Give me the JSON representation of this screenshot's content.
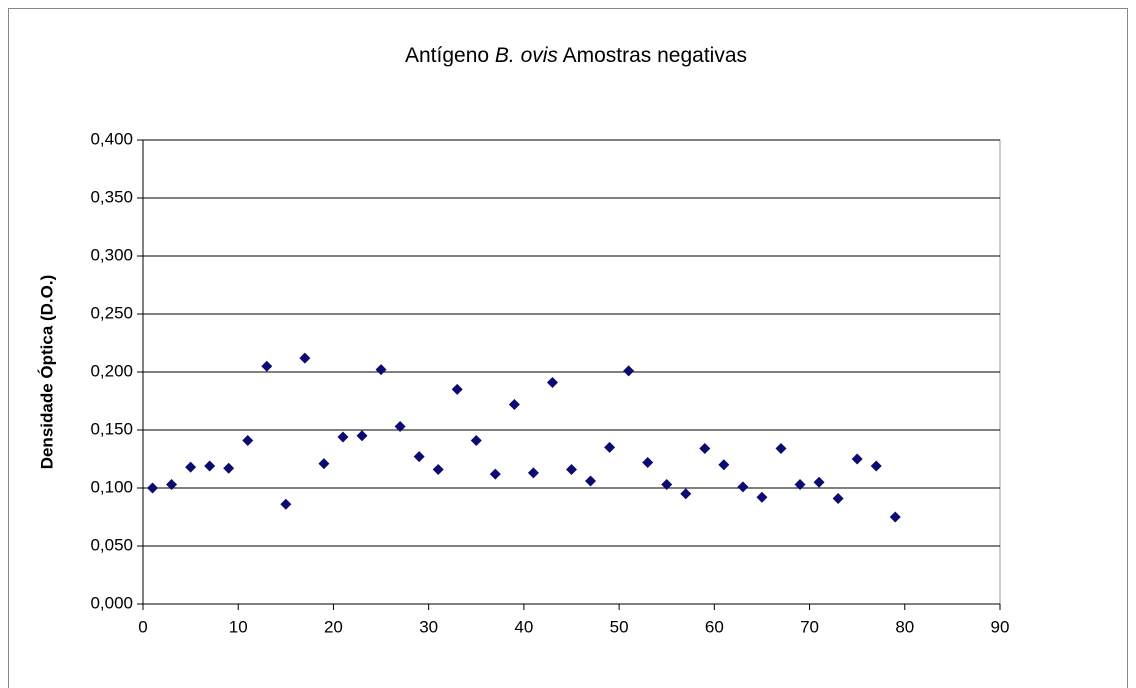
{
  "chart_data": {
    "type": "scatter",
    "title": [
      "Antígeno ",
      "B. ovis",
      " Amostras negativas"
    ],
    "y_label": "Densidade Óptica (D.O.)",
    "x": [
      1,
      3,
      5,
      7,
      9,
      11,
      13,
      15,
      17,
      19,
      21,
      23,
      25,
      27,
      29,
      31,
      33,
      35,
      37,
      39,
      41,
      43,
      45,
      47,
      49,
      51,
      53,
      55,
      57,
      59,
      61,
      63,
      65,
      67,
      69,
      71,
      73,
      75,
      77,
      79
    ],
    "values": [
      0.1,
      0.103,
      0.118,
      0.119,
      0.117,
      0.141,
      0.205,
      0.086,
      0.212,
      0.121,
      0.144,
      0.145,
      0.202,
      0.153,
      0.127,
      0.116,
      0.185,
      0.141,
      0.112,
      0.172,
      0.113,
      0.191,
      0.116,
      0.106,
      0.135,
      0.201,
      0.122,
      0.103,
      0.095,
      0.134,
      0.12,
      0.101,
      0.092,
      0.134,
      0.103,
      0.105,
      0.091,
      0.125,
      0.119,
      0.075
    ],
    "color": "#0b0b70",
    "xlim": [
      0,
      90
    ],
    "xticks": [
      0,
      10,
      20,
      30,
      40,
      50,
      60,
      70,
      80,
      90
    ],
    "ylim": [
      0,
      0.4
    ],
    "yticks": [
      {
        "value": 0,
        "label": "0,000"
      },
      {
        "value": 0.05,
        "label": "0,050"
      },
      {
        "value": 0.1,
        "label": "0,100"
      },
      {
        "value": 0.15,
        "label": "0,150"
      },
      {
        "value": 0.2,
        "label": "0,200"
      },
      {
        "value": 0.25,
        "label": "0,250"
      },
      {
        "value": 0.3,
        "label": "0,300"
      },
      {
        "value": 0.35,
        "label": "0,350"
      },
      {
        "value": 0.4,
        "label": "0,400"
      }
    ],
    "grid": true
  }
}
